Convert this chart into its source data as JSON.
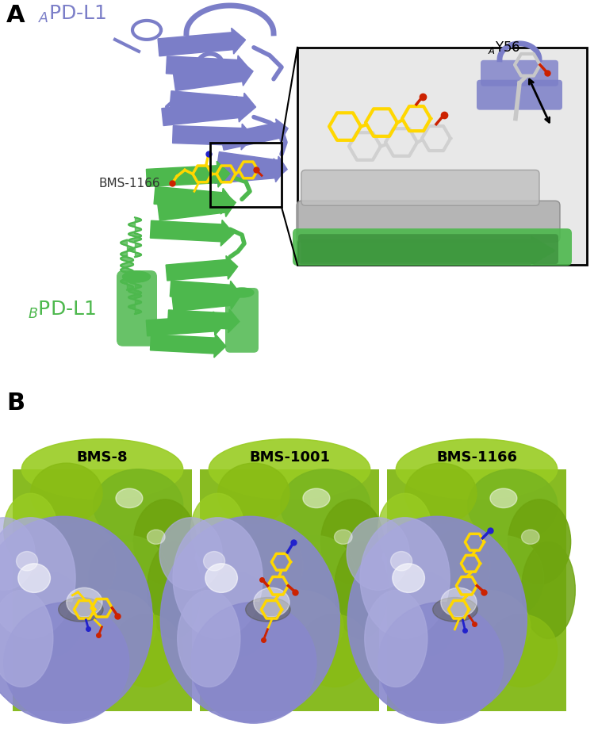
{
  "panel_A_label": "A",
  "panel_B_label": "B",
  "label_APD_L1": "$_A$PD-L1",
  "label_BPD_L1": "$_B$PD-L1",
  "label_BMS_1166": "BMS-1166",
  "label_AY56": "$_A$Y56",
  "panel_B_titles": [
    "BMS-8",
    "BMS-1001",
    "BMS-1166"
  ],
  "color_blue_protein": "#7B7EC8",
  "color_green_protein": "#4DB84D",
  "color_yellow": "#FFD700",
  "color_red": "#CC2200",
  "color_blue_atom": "#2222CC",
  "color_gray": "#AAAAAA",
  "color_dark_gray": "#888888",
  "color_white": "#FFFFFF",
  "color_background": "#FFFFFF",
  "color_panel_label": "#000000",
  "color_A_text": "#7B7EC8",
  "color_B_text": "#4DB84D",
  "surface_blue": "#8888CC",
  "surface_green": "#88BB22",
  "surface_dark_green": "#5A9900",
  "surface_light_blue": "#AAAADD",
  "fig_width": 7.54,
  "fig_height": 9.22
}
